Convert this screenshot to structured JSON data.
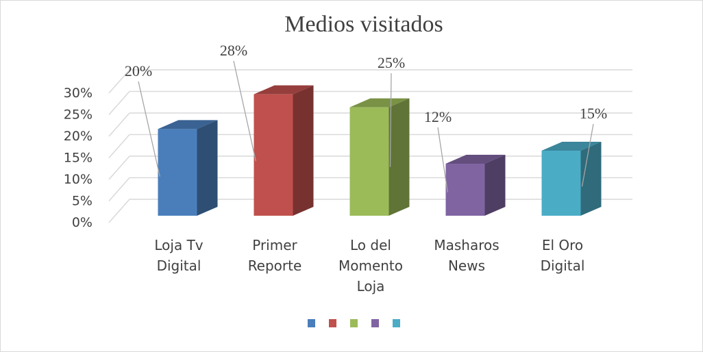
{
  "chart_data": {
    "type": "bar",
    "title": "Medios visitados",
    "categories": [
      "Loja Tv Digital",
      "Primer Reporte",
      "Lo del Momento Loja",
      "Masharos News",
      "El Oro Digital"
    ],
    "category_lines": [
      [
        "Loja Tv",
        "Digital"
      ],
      [
        "Primer",
        "Reporte"
      ],
      [
        "Lo del",
        "Momento",
        "Loja"
      ],
      [
        "Masharos",
        "News"
      ],
      [
        "El Oro",
        "Digital"
      ]
    ],
    "values": [
      0.2,
      0.28,
      0.25,
      0.12,
      0.15
    ],
    "data_labels": [
      "20%",
      "28%",
      "25%",
      "12%",
      "15%"
    ],
    "colors": [
      "#4a7ebb",
      "#c0504d",
      "#9bbb59",
      "#8064a2",
      "#4bacc6"
    ],
    "y_ticks": [
      "0%",
      "5%",
      "10%",
      "15%",
      "20%",
      "25%",
      "30%"
    ],
    "ylim": [
      0,
      0.3
    ],
    "grid": true,
    "three_d": true,
    "legend": "bottom-center, color swatches only"
  }
}
